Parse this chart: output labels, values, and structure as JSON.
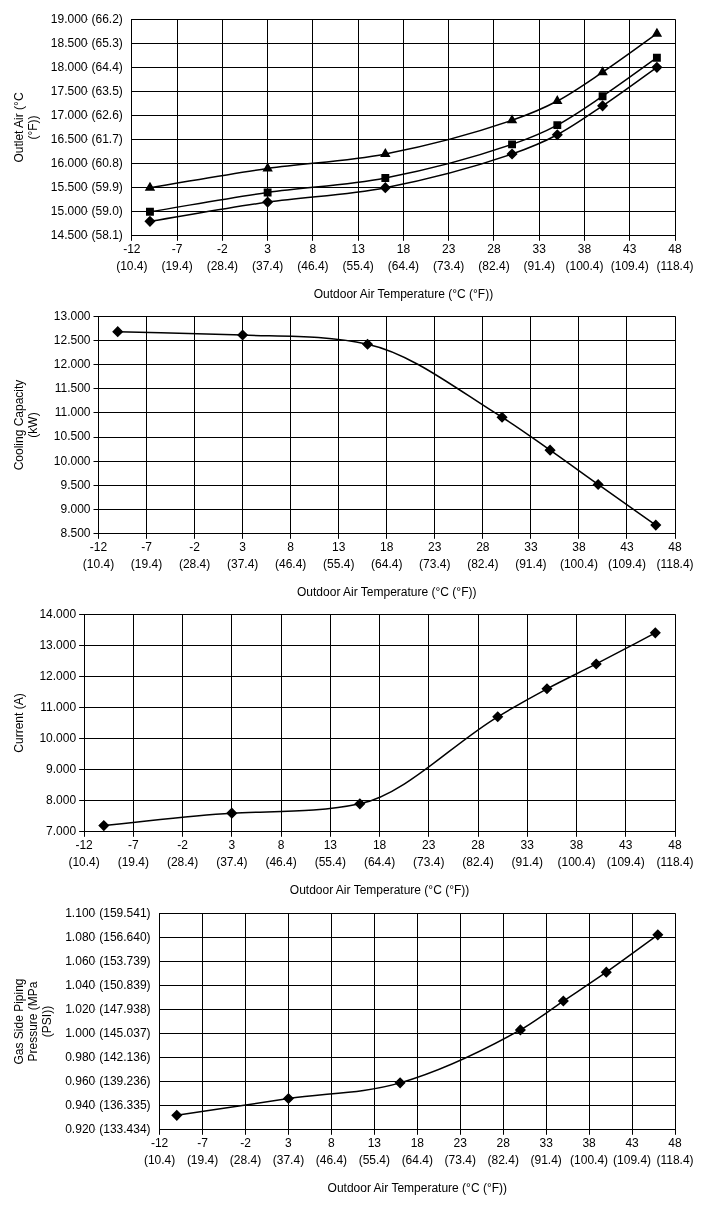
{
  "chart_data": [
    {
      "type": "line",
      "ylabel": "Outlet Air (°C (°F))",
      "xlabel": "Outdoor Air Temperature (°C (°F))",
      "x": [
        -10,
        3,
        16,
        30,
        35,
        40,
        46
      ],
      "xlim": [
        -12,
        48
      ],
      "xticks": [
        -12,
        -7,
        -2,
        3,
        8,
        13,
        18,
        23,
        28,
        33,
        38,
        43,
        48
      ],
      "x2lim": [
        10.4,
        118.4
      ],
      "x2ticks": [
        {
          "value": 10.4,
          "label": "(10.4)"
        },
        {
          "value": 19.4,
          "label": "(19.4)"
        },
        {
          "value": 28.4,
          "label": "(28.4)"
        },
        {
          "value": 37.4,
          "label": "(37.4)"
        },
        {
          "value": 46.4,
          "label": "(46.4)"
        },
        {
          "value": 55.4,
          "label": "(55.4)"
        },
        {
          "value": 64.4,
          "label": "(64.4)"
        },
        {
          "value": 73.4,
          "label": "(73.4)"
        },
        {
          "value": 82.4,
          "label": "(82.4)"
        },
        {
          "value": 91.4,
          "label": "(91.4)"
        },
        {
          "value": 100.4,
          "label": "(100.4)"
        },
        {
          "value": 109.4,
          "label": "(109.4)"
        },
        {
          "value": 118.4,
          "label": "(118.4)"
        }
      ],
      "ylim": [
        14.5,
        19.0
      ],
      "yticks": [
        {
          "value": 14.5,
          "label": "14.500"
        },
        {
          "value": 15.0,
          "label": "15.000"
        },
        {
          "value": 15.5,
          "label": "15.500"
        },
        {
          "value": 16.0,
          "label": "16.000"
        },
        {
          "value": 16.5,
          "label": "16.500"
        },
        {
          "value": 17.0,
          "label": "17.000"
        },
        {
          "value": 17.5,
          "label": "17.500"
        },
        {
          "value": 18.0,
          "label": "18.000"
        },
        {
          "value": 18.5,
          "label": "18.500"
        },
        {
          "value": 19.0,
          "label": "19.000"
        }
      ],
      "y2lim": [
        58.1,
        66.2
      ],
      "y2ticks": [
        {
          "value": 58.1,
          "label": "(58.1)"
        },
        {
          "value": 59.0,
          "label": "(59.0)"
        },
        {
          "value": 59.9,
          "label": "(59.9)"
        },
        {
          "value": 60.8,
          "label": "(60.8)"
        },
        {
          "value": 61.7,
          "label": "(61.7)"
        },
        {
          "value": 62.6,
          "label": "(62.6)"
        },
        {
          "value": 63.5,
          "label": "(63.5)"
        },
        {
          "value": 64.4,
          "label": "(64.4)"
        },
        {
          "value": 65.3,
          "label": "(65.3)"
        },
        {
          "value": 66.2,
          "label": "(66.2)"
        }
      ],
      "grid": true,
      "line_style": "solid",
      "series": [
        {
          "color": "#000000",
          "marker": "diamond",
          "values": [
            14.8,
            15.2,
            15.5,
            16.2,
            16.6,
            17.2,
            18.0
          ]
        },
        {
          "color": "#000000",
          "marker": "square",
          "values": [
            15.0,
            15.4,
            15.7,
            16.4,
            16.8,
            17.4,
            18.2
          ]
        },
        {
          "color": "#000000",
          "marker": "triangle",
          "values": [
            15.5,
            15.9,
            16.2,
            16.9,
            17.3,
            17.9,
            18.7
          ]
        }
      ]
    },
    {
      "type": "line",
      "ylabel": "Cooling Capacity (kW)",
      "xlabel": "Outdoor Air Temperature (°C (°F))",
      "x": [
        -10,
        3,
        16,
        30,
        35,
        40,
        46
      ],
      "xlim": [
        -12,
        48
      ],
      "xticks": [
        -12,
        -7,
        -2,
        3,
        8,
        13,
        18,
        23,
        28,
        33,
        38,
        43,
        48
      ],
      "x2lim": [
        10.4,
        118.4
      ],
      "x2ticks": [
        {
          "value": 10.4,
          "label": "(10.4)"
        },
        {
          "value": 19.4,
          "label": "(19.4)"
        },
        {
          "value": 28.4,
          "label": "(28.4)"
        },
        {
          "value": 37.4,
          "label": "(37.4)"
        },
        {
          "value": 46.4,
          "label": "(46.4)"
        },
        {
          "value": 55.4,
          "label": "(55.4)"
        },
        {
          "value": 64.4,
          "label": "(64.4)"
        },
        {
          "value": 73.4,
          "label": "(73.4)"
        },
        {
          "value": 82.4,
          "label": "(82.4)"
        },
        {
          "value": 91.4,
          "label": "(91.4)"
        },
        {
          "value": 100.4,
          "label": "(100.4)"
        },
        {
          "value": 109.4,
          "label": "(109.4)"
        },
        {
          "value": 118.4,
          "label": "(118.4)"
        }
      ],
      "ylim": [
        8.5,
        13.0
      ],
      "yticks": [
        {
          "value": 8.5,
          "label": "8.500"
        },
        {
          "value": 9.0,
          "label": "9.000"
        },
        {
          "value": 9.5,
          "label": "9.500"
        },
        {
          "value": 10.0,
          "label": "10.000"
        },
        {
          "value": 10.5,
          "label": "10.500"
        },
        {
          "value": 11.0,
          "label": "11.000"
        },
        {
          "value": 11.5,
          "label": "11.500"
        },
        {
          "value": 12.0,
          "label": "12.000"
        },
        {
          "value": 12.5,
          "label": "12.500"
        },
        {
          "value": 13.0,
          "label": "13.000"
        }
      ],
      "grid": true,
      "line_style": "solid",
      "marker": "diamond",
      "series": [
        {
          "color": "#000000",
          "values": [
            12.68,
            12.61,
            12.42,
            10.91,
            10.23,
            9.52,
            8.68
          ]
        }
      ]
    },
    {
      "type": "line",
      "ylabel": "Current (A)",
      "xlabel": "Outdoor Air Temperature (°C (°F))",
      "x": [
        -10,
        3,
        16,
        30,
        35,
        40,
        46
      ],
      "xlim": [
        -12,
        48
      ],
      "xticks": [
        -12,
        -7,
        -2,
        3,
        8,
        13,
        18,
        23,
        28,
        33,
        38,
        43,
        48
      ],
      "x2lim": [
        10.4,
        118.4
      ],
      "x2ticks": [
        {
          "value": 10.4,
          "label": "(10.4)"
        },
        {
          "value": 19.4,
          "label": "(19.4)"
        },
        {
          "value": 28.4,
          "label": "(28.4)"
        },
        {
          "value": 37.4,
          "label": "(37.4)"
        },
        {
          "value": 46.4,
          "label": "(46.4)"
        },
        {
          "value": 55.4,
          "label": "(55.4)"
        },
        {
          "value": 64.4,
          "label": "(64.4)"
        },
        {
          "value": 73.4,
          "label": "(73.4)"
        },
        {
          "value": 82.4,
          "label": "(82.4)"
        },
        {
          "value": 91.4,
          "label": "(91.4)"
        },
        {
          "value": 100.4,
          "label": "(100.4)"
        },
        {
          "value": 109.4,
          "label": "(109.4)"
        },
        {
          "value": 118.4,
          "label": "(118.4)"
        }
      ],
      "ylim": [
        7,
        14
      ],
      "yticks": [
        {
          "value": 7,
          "label": "7.000"
        },
        {
          "value": 8,
          "label": "8.000"
        },
        {
          "value": 9,
          "label": "9.000"
        },
        {
          "value": 10,
          "label": "10.000"
        },
        {
          "value": 11,
          "label": "11.000"
        },
        {
          "value": 12,
          "label": "12.000"
        },
        {
          "value": 13,
          "label": "13.000"
        },
        {
          "value": 14,
          "label": "14.000"
        }
      ],
      "grid": true,
      "line_style": "solid",
      "marker": "diamond",
      "series": [
        {
          "color": "#000000",
          "values": [
            7.2,
            7.6,
            7.9,
            10.7,
            11.6,
            12.4,
            13.4
          ]
        }
      ]
    },
    {
      "type": "line",
      "ylabel": "Gas Side Piping Pressure (MPa (PSI))",
      "xlabel": "Outdoor Air Temperature (°C (°F))",
      "x": [
        -10,
        3,
        16,
        30,
        35,
        40,
        46
      ],
      "xlim": [
        -12,
        48
      ],
      "xticks": [
        -12,
        -7,
        -2,
        3,
        8,
        13,
        18,
        23,
        28,
        33,
        38,
        43,
        48
      ],
      "x2lim": [
        10.4,
        118.4
      ],
      "x2ticks": [
        {
          "value": 10.4,
          "label": "(10.4)"
        },
        {
          "value": 19.4,
          "label": "(19.4)"
        },
        {
          "value": 28.4,
          "label": "(28.4)"
        },
        {
          "value": 37.4,
          "label": "(37.4)"
        },
        {
          "value": 46.4,
          "label": "(46.4)"
        },
        {
          "value": 55.4,
          "label": "(55.4)"
        },
        {
          "value": 64.4,
          "label": "(64.4)"
        },
        {
          "value": 73.4,
          "label": "(73.4)"
        },
        {
          "value": 82.4,
          "label": "(82.4)"
        },
        {
          "value": 91.4,
          "label": "(91.4)"
        },
        {
          "value": 100.4,
          "label": "(100.4)"
        },
        {
          "value": 109.4,
          "label": "(109.4)"
        },
        {
          "value": 118.4,
          "label": "(118.4)"
        }
      ],
      "ylim": [
        0.92,
        1.1
      ],
      "yticks": [
        {
          "value": 0.92,
          "label": "0.920"
        },
        {
          "value": 0.94,
          "label": "0.940"
        },
        {
          "value": 0.96,
          "label": "0.960"
        },
        {
          "value": 0.98,
          "label": "0.980"
        },
        {
          "value": 1.0,
          "label": "1.000"
        },
        {
          "value": 1.02,
          "label": "1.020"
        },
        {
          "value": 1.04,
          "label": "1.040"
        },
        {
          "value": 1.06,
          "label": "1.060"
        },
        {
          "value": 1.08,
          "label": "1.080"
        },
        {
          "value": 1.1,
          "label": "1.100"
        }
      ],
      "y2lim": [
        133.434,
        159.541
      ],
      "y2ticks": [
        {
          "value": 133.434,
          "label": "(133.434)"
        },
        {
          "value": 136.335,
          "label": "(136.335)"
        },
        {
          "value": 139.236,
          "label": "(139.236)"
        },
        {
          "value": 142.136,
          "label": "(142.136)"
        },
        {
          "value": 145.037,
          "label": "(145.037)"
        },
        {
          "value": 147.938,
          "label": "(147.938)"
        },
        {
          "value": 150.839,
          "label": "(150.839)"
        },
        {
          "value": 153.739,
          "label": "(153.739)"
        },
        {
          "value": 156.64,
          "label": "(156.640)"
        },
        {
          "value": 159.541,
          "label": "(159.541)"
        }
      ],
      "grid": true,
      "line_style": "solid",
      "marker": "diamond",
      "series": [
        {
          "color": "#000000",
          "values": [
            0.932,
            0.946,
            0.959,
            1.003,
            1.027,
            1.051,
            1.082
          ]
        }
      ]
    }
  ]
}
